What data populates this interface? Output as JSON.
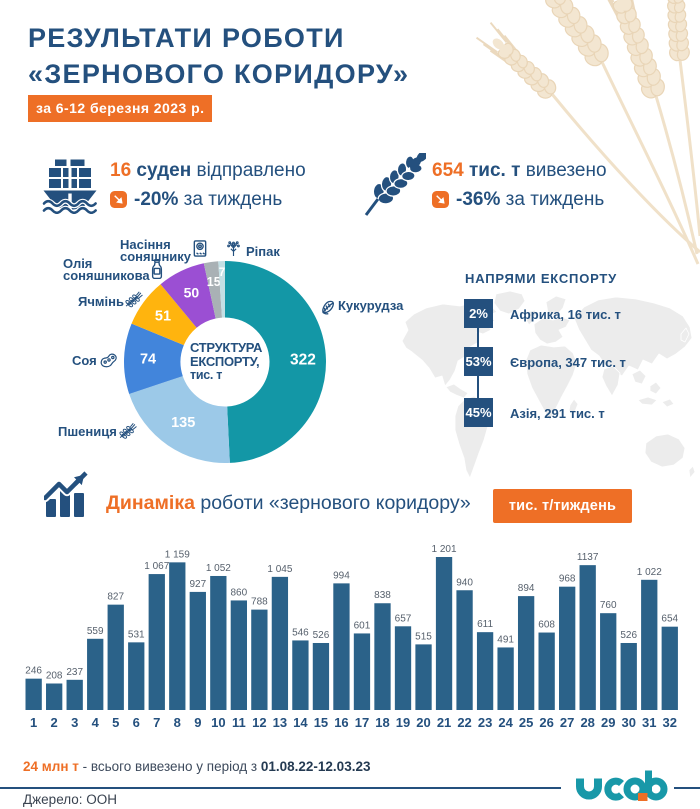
{
  "header": {
    "title_line1": "РЕЗУЛЬТАТИ РОБОТИ",
    "title_line2": "«ЗЕРНОВОГО КОРИДОРУ»",
    "date_badge": "за 6-12 березня 2023 р."
  },
  "stats": {
    "ships": {
      "value": "16",
      "unit": "суден",
      "action": "відправлено",
      "change": "-20%",
      "period": "за тиждень"
    },
    "tons": {
      "value": "654",
      "unit": "тис. т",
      "action": "вивезено",
      "change": "-36%",
      "period": "за тиждень"
    }
  },
  "donut_center": {
    "line1": "СТРУКТУРА",
    "line2": "ЕКСПОРТУ,",
    "line3": "тис. т"
  },
  "directions": {
    "title": "НАПРЯМИ ЕКСПОРТУ",
    "items": [
      {
        "percent": "2%",
        "label": "Африка, 16 тис. т"
      },
      {
        "percent": "53%",
        "label": "Європа, 347 тис. т"
      },
      {
        "percent": "45%",
        "label": "Азія, 291 тис. т"
      }
    ]
  },
  "dynamics": {
    "title_highlight": "Динаміка",
    "title_rest": " роботи «зернового коридору»",
    "unit_badge": "тис. т/тиждень"
  },
  "footer": {
    "total_value": "24 млн т",
    "total_text": " - всього вивезено у період з ",
    "total_period": "01.08.22-12.03.23",
    "source": "Джерело: ООН",
    "logo": "ucab"
  },
  "colors": {
    "navy": "#24507E",
    "orange": "#EE6F26",
    "bar": "#2B6289",
    "logo_teal": "#1898A8"
  },
  "chart_data": [
    {
      "type": "pie",
      "title": "СТРУКТУРА ЕКСПОРТУ, тис. т",
      "labels": [
        "Кукурудза",
        "Пшениця",
        "Соя",
        "Ячмінь",
        "Олія соняшникова",
        "Насіння соняшнику",
        "Ріпак"
      ],
      "values": [
        322,
        135,
        74,
        51,
        50,
        15,
        7
      ],
      "colors": [
        "#1397A6",
        "#9CC9E8",
        "#4285DB",
        "#FFB40E",
        "#9B4FD3",
        "#A9B1B5",
        "#C3DFE4"
      ],
      "total": 654,
      "donut": true,
      "legend_position": "around"
    },
    {
      "type": "bar",
      "title": "Динаміка роботи «зернового коридору»",
      "ylabel": "тис. т/тиждень",
      "categories": [
        "1",
        "2",
        "3",
        "4",
        "5",
        "6",
        "7",
        "8",
        "9",
        "10",
        "11",
        "12",
        "13",
        "14",
        "15",
        "16",
        "17",
        "18",
        "19",
        "20",
        "21",
        "22",
        "23",
        "24",
        "25",
        "26",
        "27",
        "28",
        "29",
        "30",
        "31",
        "32"
      ],
      "values": [
        246,
        208,
        237,
        559,
        827,
        531,
        1067,
        1159,
        927,
        1052,
        860,
        788,
        1045,
        546,
        526,
        994,
        601,
        838,
        657,
        515,
        1201,
        940,
        611,
        491,
        894,
        608,
        968,
        1137,
        760,
        526,
        1022,
        654
      ],
      "value_labels": [
        "246",
        "208",
        "237",
        "559",
        "827",
        "531",
        "1 067",
        "1 159",
        "927",
        "1 052",
        "860",
        "788",
        "1 045",
        "546",
        "526",
        "994",
        "601",
        "838",
        "657",
        "515",
        "1 201",
        "940",
        "611",
        "491",
        "894",
        "608",
        "968",
        "1137",
        "760",
        "526",
        "1 022",
        "654"
      ],
      "bar_color": "#2B6289",
      "ylim": [
        0,
        1250
      ],
      "grid": false,
      "legend_position": "none"
    }
  ]
}
